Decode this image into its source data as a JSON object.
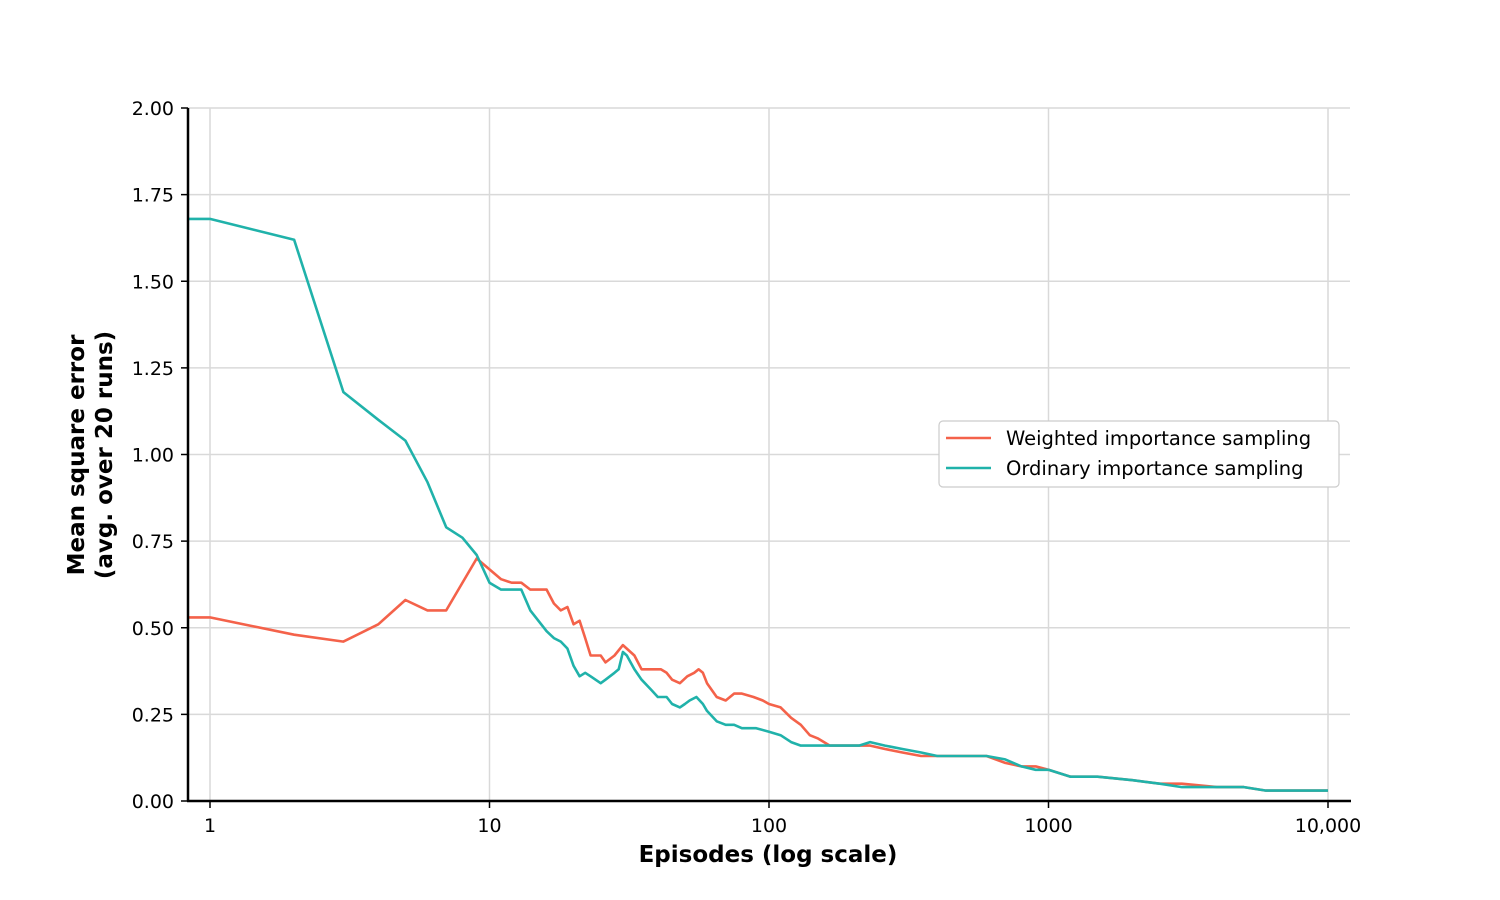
{
  "chart_data": {
    "type": "line",
    "title": "",
    "xlabel": "Episodes (log scale)",
    "ylabel_lines": [
      "Mean square error",
      "(avg. over 20 runs)"
    ],
    "x_scale": "log",
    "xlim": [
      0.85,
      11000
    ],
    "ylim": [
      0,
      2
    ],
    "x_ticks": [
      {
        "value": 1,
        "label": "1"
      },
      {
        "value": 10,
        "label": "10"
      },
      {
        "value": 100,
        "label": "100"
      },
      {
        "value": 1000,
        "label": "1000"
      },
      {
        "value": 10000,
        "label": "10,000"
      }
    ],
    "y_ticks": [
      {
        "value": 0,
        "label": "0.00"
      },
      {
        "value": 0.25,
        "label": "0.25"
      },
      {
        "value": 0.5,
        "label": "0.50"
      },
      {
        "value": 0.75,
        "label": "0.75"
      },
      {
        "value": 1.0,
        "label": "1.00"
      },
      {
        "value": 1.25,
        "label": "1.25"
      },
      {
        "value": 1.5,
        "label": "1.50"
      },
      {
        "value": 1.75,
        "label": "1.75"
      },
      {
        "value": 2.0,
        "label": "2.00"
      }
    ],
    "grid": true,
    "legend_position": "center-right",
    "series": [
      {
        "name": "Weighted importance sampling",
        "color": "#f4624a",
        "x": [
          1,
          2,
          3,
          4,
          5,
          6,
          7,
          9,
          11,
          12,
          13,
          14,
          16,
          17,
          18,
          19,
          20,
          21,
          22,
          23,
          25,
          26,
          28,
          30,
          33,
          35,
          38,
          41,
          43,
          45,
          48,
          51,
          54,
          56,
          58,
          60,
          65,
          70,
          75,
          80,
          88,
          95,
          100,
          110,
          120,
          130,
          140,
          150,
          165,
          180,
          200,
          230,
          260,
          300,
          350,
          400,
          450,
          500,
          600,
          700,
          800,
          900,
          1000,
          1200,
          1500,
          2000,
          2500,
          3000,
          4000,
          5000,
          6000,
          7000,
          8000,
          9000,
          10000
        ],
        "y": [
          0.53,
          0.48,
          0.46,
          0.51,
          0.58,
          0.55,
          0.55,
          0.7,
          0.64,
          0.63,
          0.63,
          0.61,
          0.61,
          0.57,
          0.55,
          0.56,
          0.51,
          0.52,
          0.47,
          0.42,
          0.42,
          0.4,
          0.42,
          0.45,
          0.42,
          0.38,
          0.38,
          0.38,
          0.37,
          0.35,
          0.34,
          0.36,
          0.37,
          0.38,
          0.37,
          0.34,
          0.3,
          0.29,
          0.31,
          0.31,
          0.3,
          0.29,
          0.28,
          0.27,
          0.24,
          0.22,
          0.19,
          0.18,
          0.16,
          0.16,
          0.16,
          0.16,
          0.15,
          0.14,
          0.13,
          0.13,
          0.13,
          0.13,
          0.13,
          0.11,
          0.1,
          0.1,
          0.09,
          0.07,
          0.07,
          0.06,
          0.05,
          0.05,
          0.04,
          0.04,
          0.03,
          0.03,
          0.03,
          0.03,
          0.03
        ]
      },
      {
        "name": "Ordinary importance sampling",
        "color": "#20b2aa",
        "x": [
          1,
          2,
          3,
          4,
          5,
          6,
          7,
          8,
          9,
          10,
          11,
          12,
          13,
          14,
          16,
          17,
          18,
          19,
          20,
          21,
          22,
          23,
          25,
          26,
          28,
          29,
          30,
          31,
          33,
          35,
          38,
          40,
          43,
          45,
          48,
          50,
          52,
          55,
          58,
          60,
          65,
          70,
          75,
          80,
          90,
          100,
          110,
          120,
          130,
          150,
          170,
          190,
          210,
          230,
          260,
          300,
          350,
          400,
          450,
          500,
          600,
          700,
          800,
          900,
          1000,
          1200,
          1500,
          2000,
          2500,
          3000,
          4000,
          5000,
          6000,
          7000,
          8000,
          9000,
          10000
        ],
        "y": [
          1.68,
          1.62,
          1.18,
          1.1,
          1.04,
          0.92,
          0.79,
          0.76,
          0.71,
          0.63,
          0.61,
          0.61,
          0.61,
          0.55,
          0.49,
          0.47,
          0.46,
          0.44,
          0.39,
          0.36,
          0.37,
          0.36,
          0.34,
          0.35,
          0.37,
          0.38,
          0.43,
          0.42,
          0.38,
          0.35,
          0.32,
          0.3,
          0.3,
          0.28,
          0.27,
          0.28,
          0.29,
          0.3,
          0.28,
          0.26,
          0.23,
          0.22,
          0.22,
          0.21,
          0.21,
          0.2,
          0.19,
          0.17,
          0.16,
          0.16,
          0.16,
          0.16,
          0.16,
          0.17,
          0.16,
          0.15,
          0.14,
          0.13,
          0.13,
          0.13,
          0.13,
          0.12,
          0.1,
          0.09,
          0.09,
          0.07,
          0.07,
          0.06,
          0.05,
          0.04,
          0.04,
          0.04,
          0.03,
          0.03,
          0.03,
          0.03,
          0.03
        ]
      }
    ]
  }
}
